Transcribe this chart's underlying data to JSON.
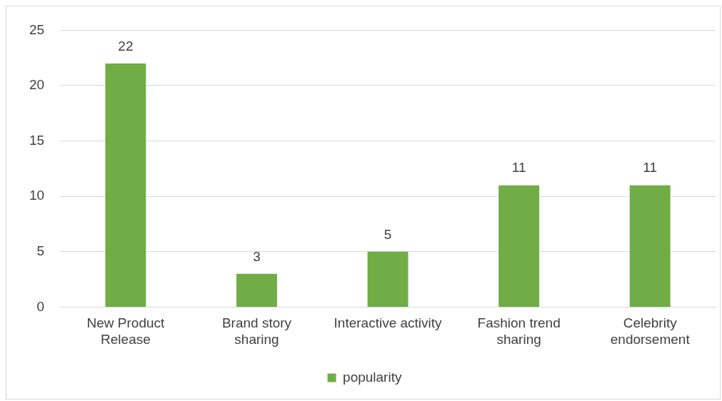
{
  "chart_data": {
    "type": "bar",
    "categories": [
      "New Product\nRelease",
      "Brand story\nsharing",
      "Interactive activity",
      "Fashion trend\nsharing",
      "Celebrity\nendorsement"
    ],
    "series": [
      {
        "name": "popularity",
        "color": "#70ad47",
        "values": [
          22,
          3,
          5,
          11,
          11
        ]
      }
    ],
    "ylim": [
      0,
      25
    ],
    "yticks": [
      0,
      5,
      10,
      15,
      20,
      25
    ],
    "grid": "y",
    "legend": "bottom",
    "data_labels": true
  }
}
